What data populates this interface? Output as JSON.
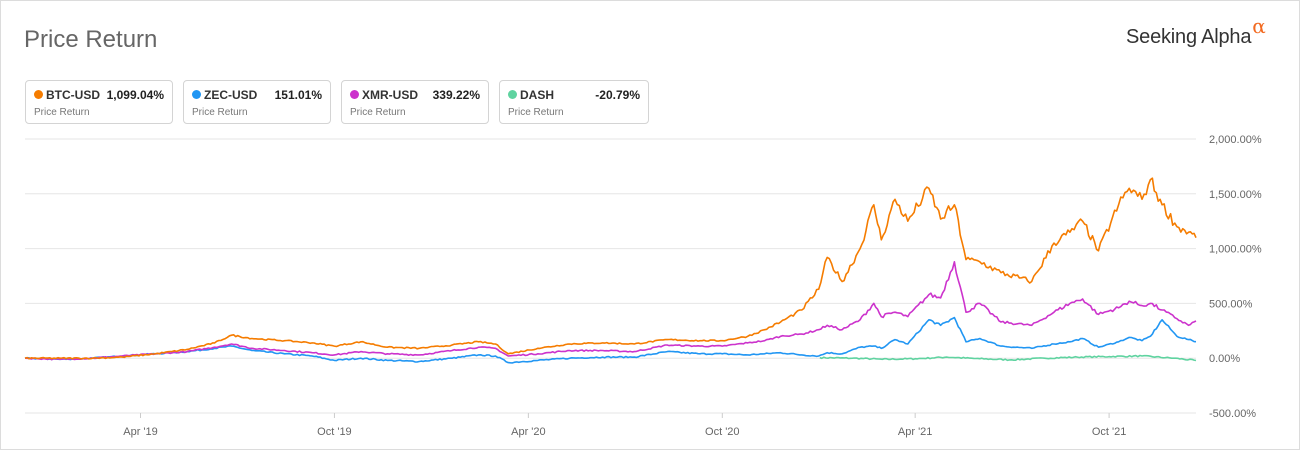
{
  "header": {
    "title": "Price Return",
    "brand": "Seeking Alpha",
    "brand_mark": "α"
  },
  "legend": [
    {
      "symbol": "BTC-USD",
      "value": "1,099.04%",
      "sub": "Price Return",
      "color": "#f57c00"
    },
    {
      "symbol": "ZEC-USD",
      "value": "151.01%",
      "sub": "Price Return",
      "color": "#2196f3"
    },
    {
      "symbol": "XMR-USD",
      "value": "339.22%",
      "sub": "Price Return",
      "color": "#cc33cc"
    },
    {
      "symbol": "DASH",
      "value": "-20.79%",
      "sub": "Price Return",
      "color": "#5fd3a0"
    }
  ],
  "chart_data": {
    "type": "line",
    "ylim": [
      -500,
      2000
    ],
    "y_ticks": [
      2000,
      1500,
      1000,
      500,
      0,
      -500
    ],
    "y_tick_labels": [
      "2,000.00%",
      "1,500.00%",
      "1,000.00%",
      "500.00%",
      "0.00%",
      "-500.00%"
    ],
    "x_range": [
      "2018-12-13",
      "2021-12-22"
    ],
    "x_ticks": [
      "2019-04-01",
      "2019-10-01",
      "2020-04-01",
      "2020-10-01",
      "2021-04-01",
      "2021-10-01"
    ],
    "x_tick_labels": [
      "Apr '19",
      "Oct '19",
      "Apr '20",
      "Oct '20",
      "Apr '21",
      "Oct '21"
    ],
    "grid": true,
    "series": [
      {
        "name": "BTC-USD",
        "color": "#f57c00",
        "points": [
          [
            "2018-12-13",
            0
          ],
          [
            "2019-01-15",
            0
          ],
          [
            "2019-02-15",
            0
          ],
          [
            "2019-03-15",
            10
          ],
          [
            "2019-04-15",
            40
          ],
          [
            "2019-05-15",
            80
          ],
          [
            "2019-06-10",
            140
          ],
          [
            "2019-06-26",
            210
          ],
          [
            "2019-07-15",
            180
          ],
          [
            "2019-08-15",
            160
          ],
          [
            "2019-09-10",
            140
          ],
          [
            "2019-10-01",
            110
          ],
          [
            "2019-10-26",
            150
          ],
          [
            "2019-11-20",
            100
          ],
          [
            "2019-12-20",
            90
          ],
          [
            "2020-01-20",
            120
          ],
          [
            "2020-02-14",
            150
          ],
          [
            "2020-03-01",
            130
          ],
          [
            "2020-03-13",
            40
          ],
          [
            "2020-04-10",
            90
          ],
          [
            "2020-05-10",
            130
          ],
          [
            "2020-06-10",
            140
          ],
          [
            "2020-07-10",
            130
          ],
          [
            "2020-08-10",
            170
          ],
          [
            "2020-09-10",
            160
          ],
          [
            "2020-10-01",
            160
          ],
          [
            "2020-10-25",
            200
          ],
          [
            "2020-11-10",
            260
          ],
          [
            "2020-11-25",
            330
          ],
          [
            "2020-12-15",
            440
          ],
          [
            "2020-12-31",
            630
          ],
          [
            "2021-01-08",
            920
          ],
          [
            "2021-01-22",
            700
          ],
          [
            "2021-02-08",
            1000
          ],
          [
            "2021-02-21",
            1400
          ],
          [
            "2021-02-28",
            1080
          ],
          [
            "2021-03-13",
            1450
          ],
          [
            "2021-03-25",
            1250
          ],
          [
            "2021-04-14",
            1550
          ],
          [
            "2021-04-25",
            1270
          ],
          [
            "2021-05-08",
            1400
          ],
          [
            "2021-05-19",
            900
          ],
          [
            "2021-06-01",
            880
          ],
          [
            "2021-06-21",
            780
          ],
          [
            "2021-07-20",
            700
          ],
          [
            "2021-08-10",
            1050
          ],
          [
            "2021-08-25",
            1150
          ],
          [
            "2021-09-06",
            1250
          ],
          [
            "2021-09-21",
            980
          ],
          [
            "2021-10-10",
            1400
          ],
          [
            "2021-10-20",
            1550
          ],
          [
            "2021-11-01",
            1450
          ],
          [
            "2021-11-09",
            1630
          ],
          [
            "2021-11-20",
            1400
          ],
          [
            "2021-12-04",
            1200
          ],
          [
            "2021-12-15",
            1150
          ],
          [
            "2021-12-22",
            1099
          ]
        ]
      },
      {
        "name": "ZEC-USD",
        "color": "#2196f3",
        "points": [
          [
            "2018-12-13",
            0
          ],
          [
            "2019-01-15",
            -10
          ],
          [
            "2019-02-15",
            0
          ],
          [
            "2019-03-15",
            20
          ],
          [
            "2019-04-15",
            40
          ],
          [
            "2019-05-15",
            60
          ],
          [
            "2019-06-10",
            90
          ],
          [
            "2019-06-26",
            110
          ],
          [
            "2019-07-15",
            70
          ],
          [
            "2019-08-15",
            40
          ],
          [
            "2019-09-10",
            20
          ],
          [
            "2019-10-01",
            -20
          ],
          [
            "2019-10-26",
            0
          ],
          [
            "2019-11-20",
            -20
          ],
          [
            "2019-12-20",
            -30
          ],
          [
            "2020-01-20",
            0
          ],
          [
            "2020-02-14",
            30
          ],
          [
            "2020-03-01",
            20
          ],
          [
            "2020-03-13",
            -40
          ],
          [
            "2020-04-10",
            -20
          ],
          [
            "2020-05-10",
            0
          ],
          [
            "2020-06-10",
            10
          ],
          [
            "2020-07-10",
            10
          ],
          [
            "2020-08-10",
            60
          ],
          [
            "2020-09-10",
            40
          ],
          [
            "2020-10-01",
            40
          ],
          [
            "2020-10-25",
            30
          ],
          [
            "2020-11-10",
            40
          ],
          [
            "2020-11-25",
            50
          ],
          [
            "2020-12-15",
            30
          ],
          [
            "2020-12-31",
            20
          ],
          [
            "2021-01-08",
            50
          ],
          [
            "2021-01-22",
            40
          ],
          [
            "2021-02-08",
            100
          ],
          [
            "2021-02-21",
            110
          ],
          [
            "2021-02-28",
            90
          ],
          [
            "2021-03-13",
            170
          ],
          [
            "2021-03-25",
            130
          ],
          [
            "2021-04-14",
            350
          ],
          [
            "2021-04-25",
            300
          ],
          [
            "2021-05-08",
            370
          ],
          [
            "2021-05-19",
            150
          ],
          [
            "2021-06-01",
            180
          ],
          [
            "2021-06-21",
            110
          ],
          [
            "2021-07-20",
            90
          ],
          [
            "2021-08-10",
            130
          ],
          [
            "2021-08-25",
            150
          ],
          [
            "2021-09-06",
            180
          ],
          [
            "2021-09-21",
            100
          ],
          [
            "2021-10-10",
            150
          ],
          [
            "2021-10-20",
            190
          ],
          [
            "2021-11-01",
            160
          ],
          [
            "2021-11-09",
            200
          ],
          [
            "2021-11-20",
            350
          ],
          [
            "2021-12-04",
            200
          ],
          [
            "2021-12-15",
            170
          ],
          [
            "2021-12-22",
            151
          ]
        ]
      },
      {
        "name": "XMR-USD",
        "color": "#cc33cc",
        "points": [
          [
            "2018-12-13",
            0
          ],
          [
            "2019-01-15",
            -10
          ],
          [
            "2019-02-15",
            0
          ],
          [
            "2019-03-15",
            20
          ],
          [
            "2019-04-15",
            40
          ],
          [
            "2019-05-15",
            60
          ],
          [
            "2019-06-10",
            100
          ],
          [
            "2019-06-26",
            130
          ],
          [
            "2019-07-15",
            90
          ],
          [
            "2019-08-15",
            70
          ],
          [
            "2019-09-10",
            50
          ],
          [
            "2019-10-01",
            30
          ],
          [
            "2019-10-26",
            60
          ],
          [
            "2019-11-20",
            40
          ],
          [
            "2019-12-20",
            30
          ],
          [
            "2020-01-20",
            70
          ],
          [
            "2020-02-14",
            100
          ],
          [
            "2020-03-01",
            90
          ],
          [
            "2020-03-13",
            20
          ],
          [
            "2020-04-10",
            40
          ],
          [
            "2020-05-10",
            70
          ],
          [
            "2020-06-10",
            70
          ],
          [
            "2020-07-10",
            60
          ],
          [
            "2020-08-10",
            120
          ],
          [
            "2020-09-10",
            110
          ],
          [
            "2020-10-01",
            110
          ],
          [
            "2020-10-25",
            140
          ],
          [
            "2020-11-10",
            160
          ],
          [
            "2020-11-25",
            200
          ],
          [
            "2020-12-15",
            220
          ],
          [
            "2020-12-31",
            260
          ],
          [
            "2021-01-08",
            300
          ],
          [
            "2021-01-22",
            260
          ],
          [
            "2021-02-08",
            350
          ],
          [
            "2021-02-21",
            500
          ],
          [
            "2021-02-28",
            380
          ],
          [
            "2021-03-13",
            420
          ],
          [
            "2021-03-25",
            380
          ],
          [
            "2021-04-14",
            580
          ],
          [
            "2021-04-25",
            550
          ],
          [
            "2021-05-08",
            880
          ],
          [
            "2021-05-19",
            420
          ],
          [
            "2021-06-01",
            500
          ],
          [
            "2021-06-21",
            330
          ],
          [
            "2021-07-20",
            300
          ],
          [
            "2021-08-10",
            420
          ],
          [
            "2021-08-25",
            500
          ],
          [
            "2021-09-06",
            540
          ],
          [
            "2021-09-21",
            400
          ],
          [
            "2021-10-10",
            460
          ],
          [
            "2021-10-20",
            520
          ],
          [
            "2021-11-01",
            480
          ],
          [
            "2021-11-09",
            500
          ],
          [
            "2021-11-20",
            440
          ],
          [
            "2021-12-04",
            360
          ],
          [
            "2021-12-15",
            300
          ],
          [
            "2021-12-22",
            339
          ]
        ]
      },
      {
        "name": "DASH",
        "color": "#5fd3a0",
        "points": [
          [
            "2021-01-01",
            5
          ],
          [
            "2021-02-01",
            0
          ],
          [
            "2021-03-01",
            -10
          ],
          [
            "2021-04-01",
            -5
          ],
          [
            "2021-05-01",
            10
          ],
          [
            "2021-06-01",
            -5
          ],
          [
            "2021-07-01",
            -15
          ],
          [
            "2021-08-01",
            0
          ],
          [
            "2021-09-01",
            10
          ],
          [
            "2021-10-01",
            15
          ],
          [
            "2021-11-01",
            20
          ],
          [
            "2021-12-01",
            0
          ],
          [
            "2021-12-22",
            -20.79
          ]
        ]
      }
    ]
  }
}
